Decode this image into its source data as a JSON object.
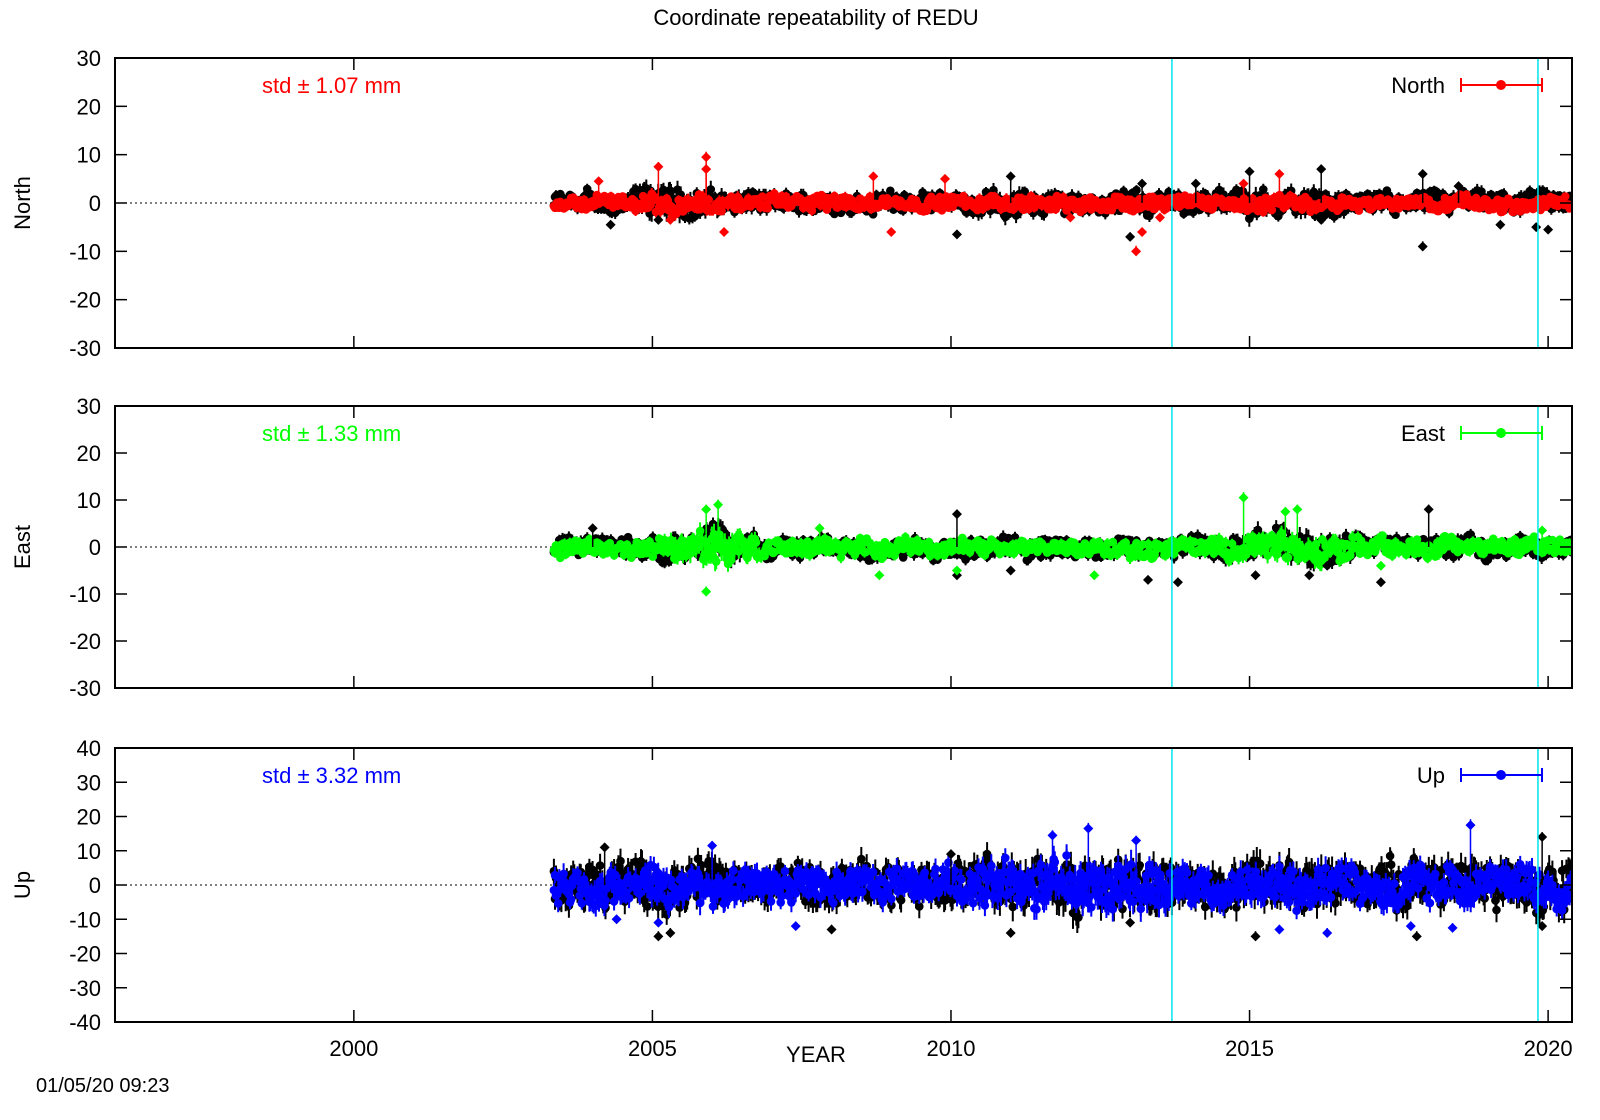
{
  "title": "Coordinate repeatability of REDU",
  "xlabel": "YEAR",
  "timestamp": "01/05/20 09:23",
  "colors": {
    "background": "#ffffff",
    "frame": "#000000",
    "zero_line": "#000000",
    "event_lines": "#00e5ee",
    "raw": "#000000"
  },
  "chart_data": [
    {
      "type": "scatter",
      "name": "North",
      "ylabel": "North",
      "legend": "North",
      "legend_position": "top-right",
      "std_label": "std ± 1.07 mm",
      "std_position": "top-left",
      "color": "#ff0000",
      "xlim": [
        1996,
        2020.4
      ],
      "ylim": [
        -30,
        30
      ],
      "yticks": [
        30,
        20,
        10,
        0,
        -10,
        -20,
        -30
      ],
      "xticks": [
        2000,
        2005,
        2010,
        2015,
        2020
      ],
      "vlines": [
        2013.7,
        2019.83
      ],
      "zero_line_from": 1996,
      "data_start": 2003.35,
      "data_end": 2020.4,
      "band_raw": [
        [
          2003.4,
          3
        ],
        [
          2004.5,
          3
        ],
        [
          2005,
          5
        ],
        [
          2006,
          4
        ],
        [
          2007,
          3
        ],
        [
          2008,
          3
        ],
        [
          2009,
          3
        ],
        [
          2010,
          3
        ],
        [
          2011,
          4
        ],
        [
          2012,
          3
        ],
        [
          2013,
          3
        ],
        [
          2014,
          3
        ],
        [
          2015,
          4
        ],
        [
          2016,
          4
        ],
        [
          2017,
          3
        ],
        [
          2018,
          3
        ],
        [
          2019,
          3
        ],
        [
          2020,
          3
        ]
      ],
      "band_color": [
        [
          2003.4,
          2.2
        ],
        [
          2004.5,
          2.2
        ],
        [
          2005,
          3
        ],
        [
          2006,
          3
        ],
        [
          2007,
          2.2
        ],
        [
          2008,
          2.5
        ],
        [
          2009,
          2.2
        ],
        [
          2010,
          2.2
        ],
        [
          2011,
          2.5
        ],
        [
          2012,
          2.2
        ],
        [
          2013,
          2.5
        ],
        [
          2014,
          2
        ],
        [
          2015,
          2.5
        ],
        [
          2016,
          2.5
        ],
        [
          2017,
          2
        ],
        [
          2018,
          2.2
        ],
        [
          2019,
          2.2
        ],
        [
          2020,
          2
        ]
      ],
      "outliers_raw": [
        [
          2004.3,
          -4.5
        ],
        [
          2005.1,
          -3.5
        ],
        [
          2010.1,
          -6.5
        ],
        [
          2011,
          5.5
        ],
        [
          2013,
          -7
        ],
        [
          2013.2,
          4
        ],
        [
          2014.1,
          4
        ],
        [
          2015,
          6.5
        ],
        [
          2016.2,
          7
        ],
        [
          2016.2,
          -3.5
        ],
        [
          2017.9,
          6
        ],
        [
          2017.9,
          -9
        ],
        [
          2018.5,
          3.5
        ],
        [
          2019.2,
          -4.5
        ],
        [
          2020,
          -5.5
        ],
        [
          2019.8,
          -5
        ]
      ],
      "outliers_color": [
        [
          2005.1,
          7.5
        ],
        [
          2005.9,
          9.5
        ],
        [
          2005.9,
          7
        ],
        [
          2006.2,
          -6
        ],
        [
          2004.1,
          4.5
        ],
        [
          2005.3,
          -3.5
        ],
        [
          2009,
          -6
        ],
        [
          2009.9,
          5
        ],
        [
          2013.1,
          -10
        ],
        [
          2013.5,
          -3
        ],
        [
          2015.5,
          6
        ],
        [
          2013.2,
          -6
        ],
        [
          2008.7,
          5.5
        ],
        [
          2014.9,
          4
        ],
        [
          2012,
          -3
        ]
      ]
    },
    {
      "type": "scatter",
      "name": "East",
      "ylabel": "East",
      "legend": "East",
      "legend_position": "top-right",
      "std_label": "std ± 1.33 mm",
      "std_position": "top-left",
      "color": "#00ff00",
      "xlim": [
        1996,
        2020.4
      ],
      "ylim": [
        -30,
        30
      ],
      "yticks": [
        30,
        20,
        10,
        0,
        -10,
        -20,
        -30
      ],
      "xticks": [
        2000,
        2005,
        2010,
        2015,
        2020
      ],
      "vlines": [
        2013.7,
        2019.83
      ],
      "zero_line_from": 1996,
      "data_start": 2003.35,
      "data_end": 2020.4,
      "band_raw": [
        [
          2003.4,
          3
        ],
        [
          2004.5,
          3
        ],
        [
          2005,
          3
        ],
        [
          2006,
          5
        ],
        [
          2007,
          3
        ],
        [
          2008,
          3
        ],
        [
          2009,
          3
        ],
        [
          2010,
          3
        ],
        [
          2011,
          3
        ],
        [
          2012,
          3
        ],
        [
          2013,
          3
        ],
        [
          2014,
          3
        ],
        [
          2015,
          4
        ],
        [
          2016,
          5
        ],
        [
          2017,
          3
        ],
        [
          2018,
          3
        ],
        [
          2019,
          3
        ],
        [
          2020,
          3
        ]
      ],
      "band_color": [
        [
          2003.4,
          2.5
        ],
        [
          2004.5,
          2.5
        ],
        [
          2005,
          2.5
        ],
        [
          2006,
          6
        ],
        [
          2007,
          2.5
        ],
        [
          2008,
          2.8
        ],
        [
          2009,
          2.5
        ],
        [
          2010,
          2.5
        ],
        [
          2011,
          2.5
        ],
        [
          2012,
          2.5
        ],
        [
          2013,
          2.8
        ],
        [
          2014,
          2.5
        ],
        [
          2015,
          3.5
        ],
        [
          2016,
          4.5
        ],
        [
          2017,
          2.5
        ],
        [
          2018,
          2.8
        ],
        [
          2019,
          2.5
        ],
        [
          2020,
          2.5
        ]
      ],
      "outliers_raw": [
        [
          2004,
          4
        ],
        [
          2010.1,
          -6
        ],
        [
          2011,
          -5
        ],
        [
          2013.3,
          -7
        ],
        [
          2013.8,
          -7.5
        ],
        [
          2015.1,
          -6
        ],
        [
          2016,
          -6
        ],
        [
          2016.3,
          -4
        ],
        [
          2017.2,
          -7.5
        ],
        [
          2018,
          8
        ],
        [
          2010.1,
          7
        ]
      ],
      "outliers_color": [
        [
          2005.9,
          -9.5
        ],
        [
          2005.9,
          8
        ],
        [
          2006.1,
          9
        ],
        [
          2014.9,
          10.5
        ],
        [
          2015.6,
          7.5
        ],
        [
          2015.8,
          8
        ],
        [
          2008.8,
          -6
        ],
        [
          2007.8,
          4
        ],
        [
          2010.1,
          -5
        ],
        [
          2012.4,
          -6
        ],
        [
          2017.2,
          -4
        ],
        [
          2019.9,
          3.5
        ]
      ]
    },
    {
      "type": "scatter",
      "name": "Up",
      "ylabel": "Up",
      "legend": "Up",
      "legend_position": "top-right",
      "std_label": "std ± 3.32 mm",
      "std_position": "top-left",
      "color": "#0000ff",
      "xlim": [
        1996,
        2020.4
      ],
      "ylim": [
        -40,
        40
      ],
      "yticks": [
        40,
        30,
        20,
        10,
        0,
        -10,
        -20,
        -30,
        -40
      ],
      "xticks": [
        2000,
        2005,
        2010,
        2015,
        2020
      ],
      "xticklabels": [
        "2000",
        "2005",
        "2010",
        "2015",
        "2020"
      ],
      "vlines": [
        2013.7,
        2019.83
      ],
      "zero_line_from": 1996,
      "data_start": 2003.35,
      "data_end": 2020.4,
      "band_raw": [
        [
          2003.4,
          9
        ],
        [
          2004.5,
          9
        ],
        [
          2005,
          11
        ],
        [
          2006,
          9
        ],
        [
          2007,
          8
        ],
        [
          2008,
          8
        ],
        [
          2009,
          8
        ],
        [
          2010,
          9
        ],
        [
          2011,
          10
        ],
        [
          2012,
          11
        ],
        [
          2013,
          11
        ],
        [
          2014,
          9
        ],
        [
          2015,
          10
        ],
        [
          2016,
          10
        ],
        [
          2017,
          9
        ],
        [
          2018,
          9
        ],
        [
          2019,
          9
        ],
        [
          2020,
          10
        ]
      ],
      "band_color": [
        [
          2003.4,
          7
        ],
        [
          2004.5,
          7
        ],
        [
          2005,
          8
        ],
        [
          2006,
          8
        ],
        [
          2007,
          7
        ],
        [
          2008,
          7
        ],
        [
          2009,
          7
        ],
        [
          2010,
          7
        ],
        [
          2011,
          9
        ],
        [
          2012,
          10
        ],
        [
          2013,
          10
        ],
        [
          2014,
          7
        ],
        [
          2015,
          8
        ],
        [
          2016,
          8
        ],
        [
          2017,
          7
        ],
        [
          2018,
          7
        ],
        [
          2019,
          7
        ],
        [
          2020,
          8
        ]
      ],
      "outliers_raw": [
        [
          2005.1,
          -15
        ],
        [
          2005.3,
          -14
        ],
        [
          2008,
          -13
        ],
        [
          2011,
          -14
        ],
        [
          2013,
          -11
        ],
        [
          2015.1,
          -15
        ],
        [
          2017.8,
          -15
        ],
        [
          2019.9,
          14
        ],
        [
          2019.9,
          -12
        ],
        [
          2004.2,
          11
        ],
        [
          2010,
          9
        ]
      ],
      "outliers_color": [
        [
          2006,
          11.5
        ],
        [
          2011.7,
          14.5
        ],
        [
          2012.3,
          16.5
        ],
        [
          2018.7,
          17.5
        ],
        [
          2018.4,
          -12.5
        ],
        [
          2015.5,
          -13
        ],
        [
          2016.3,
          -14
        ],
        [
          2017.7,
          -12
        ],
        [
          2007.4,
          -12
        ],
        [
          2005.1,
          -11
        ],
        [
          2004.4,
          -10
        ],
        [
          2013.1,
          13
        ]
      ]
    }
  ]
}
